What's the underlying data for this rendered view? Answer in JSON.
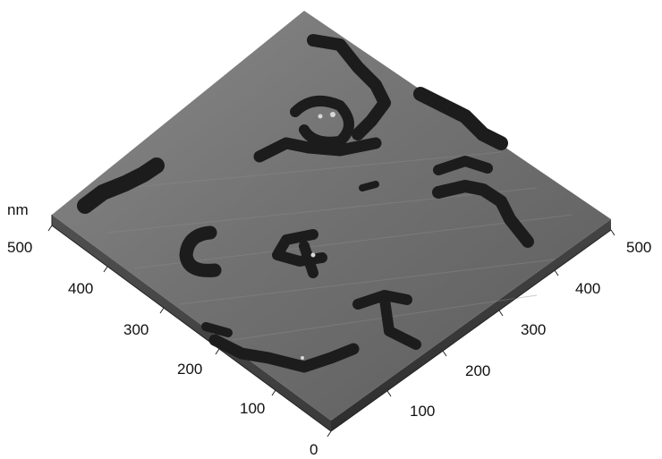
{
  "plot": {
    "unit_label": "nm",
    "left_axis_ticks": [
      "0",
      "100",
      "200",
      "300",
      "400",
      "500"
    ],
    "right_axis_ticks": [
      "100",
      "200",
      "300",
      "400",
      "500"
    ],
    "surface_color": "#6e6e6e",
    "feature_color": "#1c1c1c",
    "background": "#ffffff"
  }
}
